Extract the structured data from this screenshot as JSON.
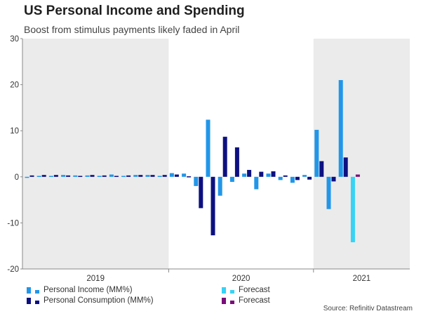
{
  "header": {
    "title": "US Personal Income and Spending",
    "subtitle": "Boost from stimulus payments likely faded in April"
  },
  "source": "Source: Refinitiv Datastream",
  "colors": {
    "income": "#2196e8",
    "consumption": "#0c1080",
    "forecast_income": "#36d3f5",
    "forecast_consumption": "#7a0d7a",
    "shade": "#ebebeb"
  },
  "chart_data": {
    "type": "bar",
    "ylim": [
      -20,
      30
    ],
    "yticks": [
      -20,
      -10,
      0,
      10,
      20,
      30
    ],
    "year_labels": [
      "2019",
      "2020",
      "2021"
    ],
    "shaded_periods": [
      "2019",
      "2021"
    ],
    "categories": [
      "2019-01",
      "2019-02",
      "2019-03",
      "2019-04",
      "2019-05",
      "2019-06",
      "2019-07",
      "2019-08",
      "2019-09",
      "2019-10",
      "2019-11",
      "2019-12",
      "2020-01",
      "2020-02",
      "2020-03",
      "2020-04",
      "2020-05",
      "2020-06",
      "2020-07",
      "2020-08",
      "2020-09",
      "2020-10",
      "2020-11",
      "2020-12",
      "2021-01",
      "2021-02",
      "2021-03",
      "2021-04"
    ],
    "series": [
      {
        "name": "Personal Income (MM%)",
        "values": [
          -0.1,
          0.2,
          0.2,
          0.4,
          0.3,
          0.3,
          0.2,
          0.5,
          0.2,
          0.4,
          0.4,
          0.2,
          0.8,
          0.7,
          -2.0,
          12.4,
          -4.1,
          -1.1,
          0.7,
          -2.7,
          0.7,
          -0.7,
          -1.3,
          0.4,
          10.2,
          -7.0,
          21.0,
          null
        ]
      },
      {
        "name": "Personal Consumption (MM%)",
        "values": [
          0.3,
          0.4,
          0.4,
          0.3,
          0.2,
          0.4,
          0.3,
          0.2,
          0.3,
          0.4,
          0.4,
          0.4,
          0.5,
          0.0,
          -6.8,
          -12.7,
          8.7,
          6.4,
          1.5,
          1.1,
          1.2,
          0.3,
          -0.7,
          -0.6,
          3.4,
          -1.0,
          4.2,
          null
        ]
      },
      {
        "name": "Forecast",
        "values": [
          null,
          null,
          null,
          null,
          null,
          null,
          null,
          null,
          null,
          null,
          null,
          null,
          null,
          null,
          null,
          null,
          null,
          null,
          null,
          null,
          null,
          null,
          null,
          null,
          null,
          null,
          null,
          -14.2
        ]
      },
      {
        "name": "Forecast",
        "values": [
          null,
          null,
          null,
          null,
          null,
          null,
          null,
          null,
          null,
          null,
          null,
          null,
          null,
          null,
          null,
          null,
          null,
          null,
          null,
          null,
          null,
          null,
          null,
          null,
          null,
          null,
          null,
          0.5
        ]
      }
    ]
  }
}
